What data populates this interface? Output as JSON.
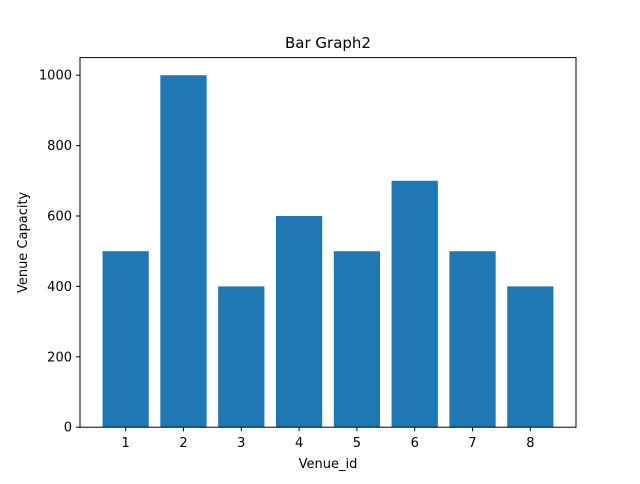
{
  "chart_data": {
    "type": "bar",
    "title": "Bar Graph2",
    "xlabel": "Venue_id",
    "ylabel": "Venue Capacity",
    "categories": [
      "1",
      "2",
      "3",
      "4",
      "5",
      "6",
      "7",
      "8"
    ],
    "values": [
      500,
      1000,
      400,
      600,
      500,
      700,
      500,
      400
    ],
    "ylim": [
      0,
      1050
    ],
    "yticks": [
      0,
      200,
      400,
      600,
      800,
      1000
    ],
    "grid": false,
    "bar_color": "#1f77b4"
  }
}
